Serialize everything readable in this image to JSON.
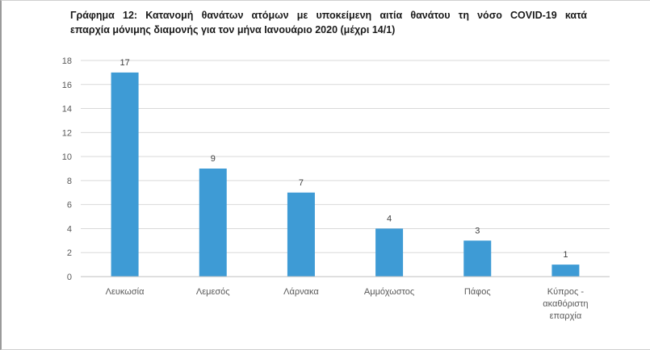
{
  "chart_data": {
    "type": "bar",
    "title_line1": "Γράφημα 12: Κατανομή θανάτων ατόμων με υποκείμενη αιτία θανάτου τη νόσο COVID-19 κατά",
    "title_line2": "επαρχία μόνιμης διαμονής για τον μήνα Ιανουάριο 2020 (μέχρι 14/1)",
    "categories": [
      [
        "Λευκωσία"
      ],
      [
        "Λεμεσός"
      ],
      [
        "Λάρνακα"
      ],
      [
        "Αμμόχωστος"
      ],
      [
        "Πάφος"
      ],
      [
        "Κύπρος -",
        "ακαθόριστη",
        "επαρχία"
      ]
    ],
    "values": [
      17,
      9,
      7,
      4,
      3,
      1
    ],
    "ylim": [
      0,
      18
    ],
    "yticks": [
      0,
      2,
      4,
      6,
      8,
      10,
      12,
      14,
      16,
      18
    ],
    "grid": true,
    "bar_color": "#3e9bd5",
    "data_labels": true
  }
}
